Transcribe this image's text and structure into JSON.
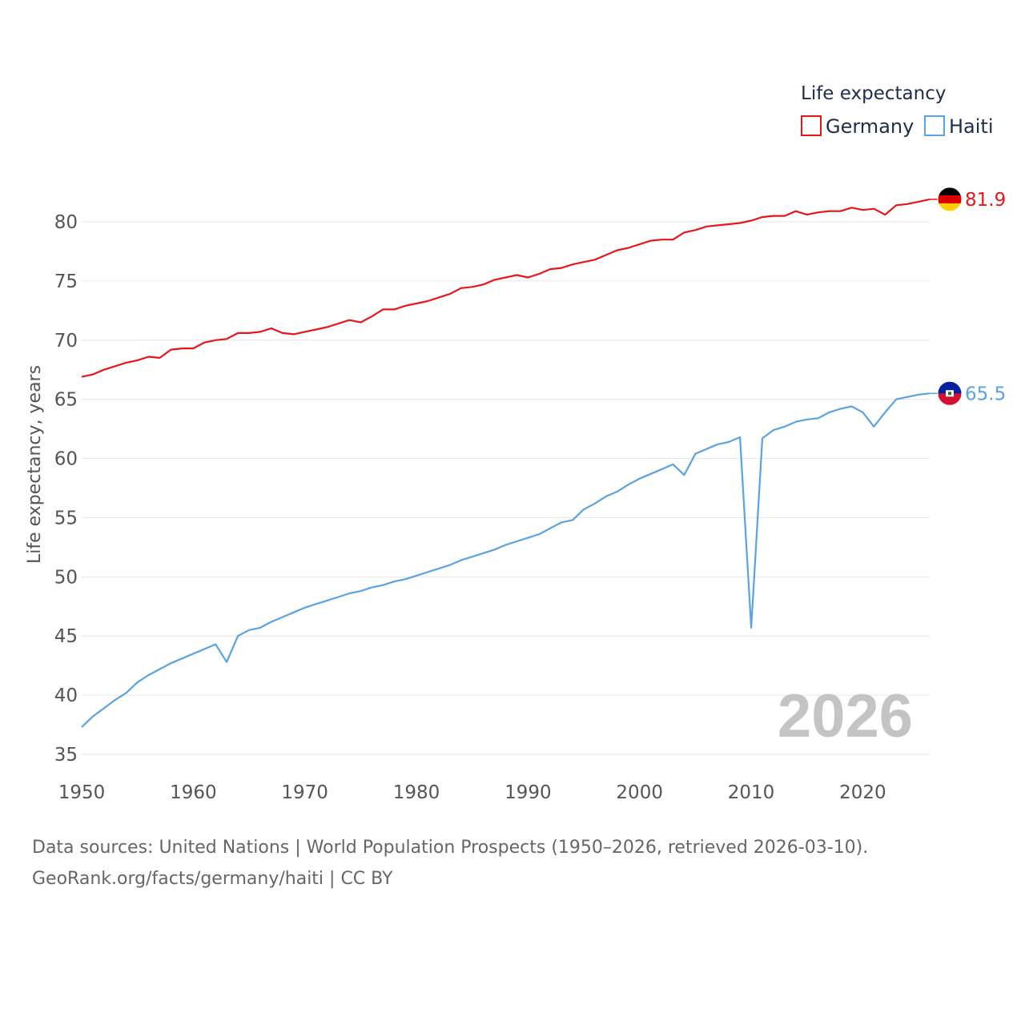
{
  "chart_data": {
    "type": "line",
    "title": "Life expectancy",
    "ylabel": "Life expectancy, years",
    "xlabel": "",
    "xlim": [
      1950,
      2026
    ],
    "ylim": [
      35,
      82
    ],
    "yticks": [
      35,
      40,
      45,
      50,
      55,
      60,
      65,
      70,
      75,
      80
    ],
    "xticks": [
      1950,
      1960,
      1970,
      1980,
      1990,
      2000,
      2010,
      2020
    ],
    "year_label": "2026",
    "grid": true,
    "legend_position": "top-right",
    "x": [
      1950,
      1951,
      1952,
      1953,
      1954,
      1955,
      1956,
      1957,
      1958,
      1959,
      1960,
      1961,
      1962,
      1963,
      1964,
      1965,
      1966,
      1967,
      1968,
      1969,
      1970,
      1971,
      1972,
      1973,
      1974,
      1975,
      1976,
      1977,
      1978,
      1979,
      1980,
      1981,
      1982,
      1983,
      1984,
      1985,
      1986,
      1987,
      1988,
      1989,
      1990,
      1991,
      1992,
      1993,
      1994,
      1995,
      1996,
      1997,
      1998,
      1999,
      2000,
      2001,
      2002,
      2003,
      2004,
      2005,
      2006,
      2007,
      2008,
      2009,
      2010,
      2011,
      2012,
      2013,
      2014,
      2015,
      2016,
      2017,
      2018,
      2019,
      2020,
      2021,
      2022,
      2023,
      2024,
      2025,
      2026
    ],
    "series": [
      {
        "name": "Germany",
        "color": "#e8161b",
        "end_label": "81.9",
        "values": [
          66.9,
          67.1,
          67.5,
          67.8,
          68.1,
          68.3,
          68.6,
          68.5,
          69.2,
          69.3,
          69.3,
          69.8,
          70.0,
          70.1,
          70.6,
          70.6,
          70.7,
          71.0,
          70.6,
          70.5,
          70.7,
          70.9,
          71.1,
          71.4,
          71.7,
          71.5,
          72.0,
          72.6,
          72.6,
          72.9,
          73.1,
          73.3,
          73.6,
          73.9,
          74.4,
          74.5,
          74.7,
          75.1,
          75.3,
          75.5,
          75.3,
          75.6,
          76.0,
          76.1,
          76.4,
          76.6,
          76.8,
          77.2,
          77.6,
          77.8,
          78.1,
          78.4,
          78.5,
          78.5,
          79.1,
          79.3,
          79.6,
          79.7,
          79.8,
          79.9,
          80.1,
          80.4,
          80.5,
          80.5,
          80.9,
          80.6,
          80.8,
          80.9,
          80.9,
          81.2,
          81.0,
          81.1,
          80.6,
          81.4,
          81.5,
          81.7,
          81.9
        ]
      },
      {
        "name": "Haiti",
        "color": "#5ba3e0",
        "end_label": "65.5",
        "values": [
          37.3,
          38.2,
          38.9,
          39.6,
          40.2,
          41.1,
          41.7,
          42.2,
          42.7,
          43.1,
          43.5,
          43.9,
          44.3,
          42.8,
          45.0,
          45.5,
          45.7,
          46.2,
          46.6,
          47.0,
          47.4,
          47.7,
          48.0,
          48.3,
          48.6,
          48.8,
          49.1,
          49.3,
          49.6,
          49.8,
          50.1,
          50.4,
          50.7,
          51.0,
          51.4,
          51.7,
          52.0,
          52.3,
          52.7,
          53.0,
          53.3,
          53.6,
          54.1,
          54.6,
          54.8,
          55.7,
          56.2,
          56.8,
          57.2,
          57.8,
          58.3,
          58.7,
          59.1,
          59.5,
          58.6,
          60.4,
          60.8,
          61.2,
          61.4,
          61.8,
          45.7,
          61.7,
          62.4,
          62.7,
          63.1,
          63.3,
          63.4,
          63.9,
          64.2,
          64.4,
          63.9,
          62.7,
          63.9,
          65.0,
          65.2,
          65.4,
          65.5
        ]
      }
    ]
  },
  "footer": {
    "line1": "Data sources: United Nations | World Population Prospects (1950–2026, retrieved 2026-03-10).",
    "line2": "GeoRank.org/facts/germany/haiti | CC BY"
  },
  "flags": {
    "germany": [
      "#000000",
      "#dd0000",
      "#ffce00"
    ],
    "haiti": [
      "#00209f",
      "#d21034"
    ]
  }
}
